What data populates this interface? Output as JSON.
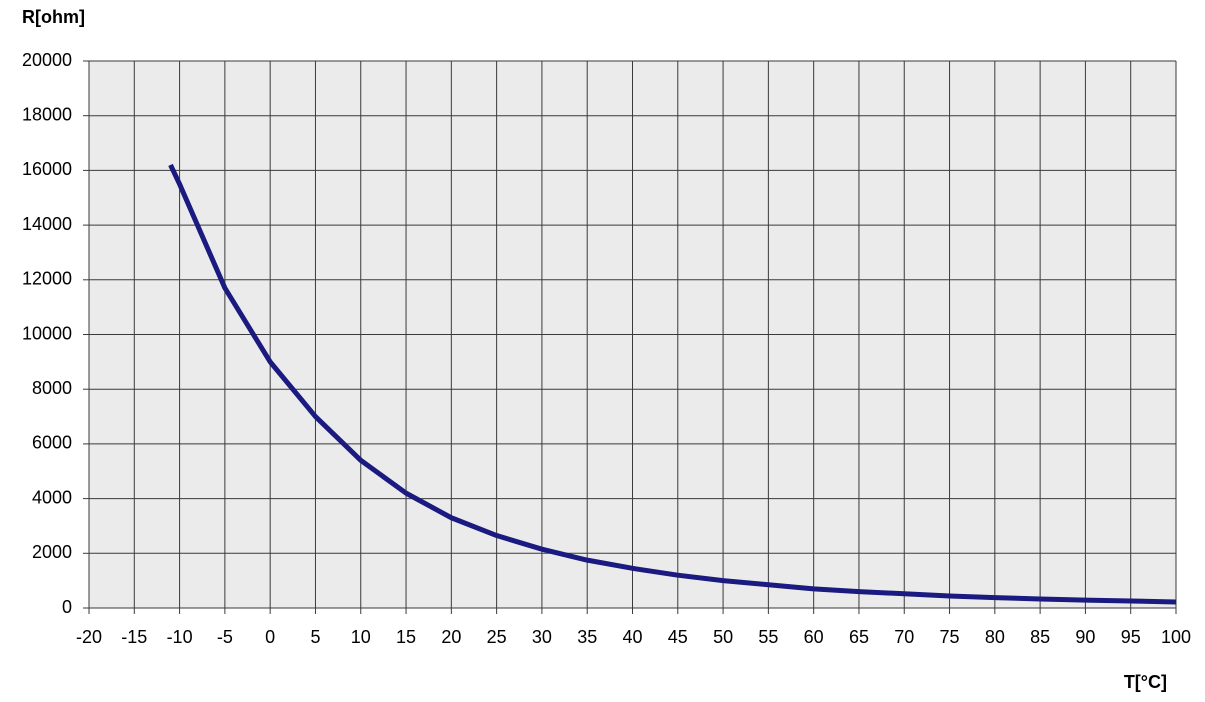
{
  "chart_data": {
    "type": "line",
    "x_label": "T[°C]",
    "y_label": "R[ohm]",
    "x": [
      -11,
      -10,
      -5,
      0,
      5,
      10,
      15,
      20,
      25,
      30,
      35,
      40,
      45,
      50,
      55,
      60,
      65,
      70,
      75,
      80,
      85,
      90,
      95,
      100
    ],
    "series": [
      {
        "color": "#1a1a80",
        "values": [
          16200,
          15500,
          11700,
          9000,
          7000,
          5400,
          4200,
          3300,
          2650,
          2150,
          1750,
          1450,
          1200,
          1000,
          850,
          700,
          600,
          520,
          440,
          380,
          330,
          290,
          255,
          220
        ]
      }
    ],
    "xlim": [
      -20,
      100
    ],
    "xticks": [
      -20,
      -15,
      -10,
      -5,
      0,
      5,
      10,
      15,
      20,
      25,
      30,
      35,
      40,
      45,
      50,
      55,
      60,
      65,
      70,
      75,
      80,
      85,
      90,
      95,
      100
    ],
    "ylim": [
      0,
      20000
    ],
    "yticks": [
      0,
      2000,
      4000,
      6000,
      8000,
      10000,
      12000,
      14000,
      16000,
      18000,
      20000
    ],
    "grid": true
  }
}
